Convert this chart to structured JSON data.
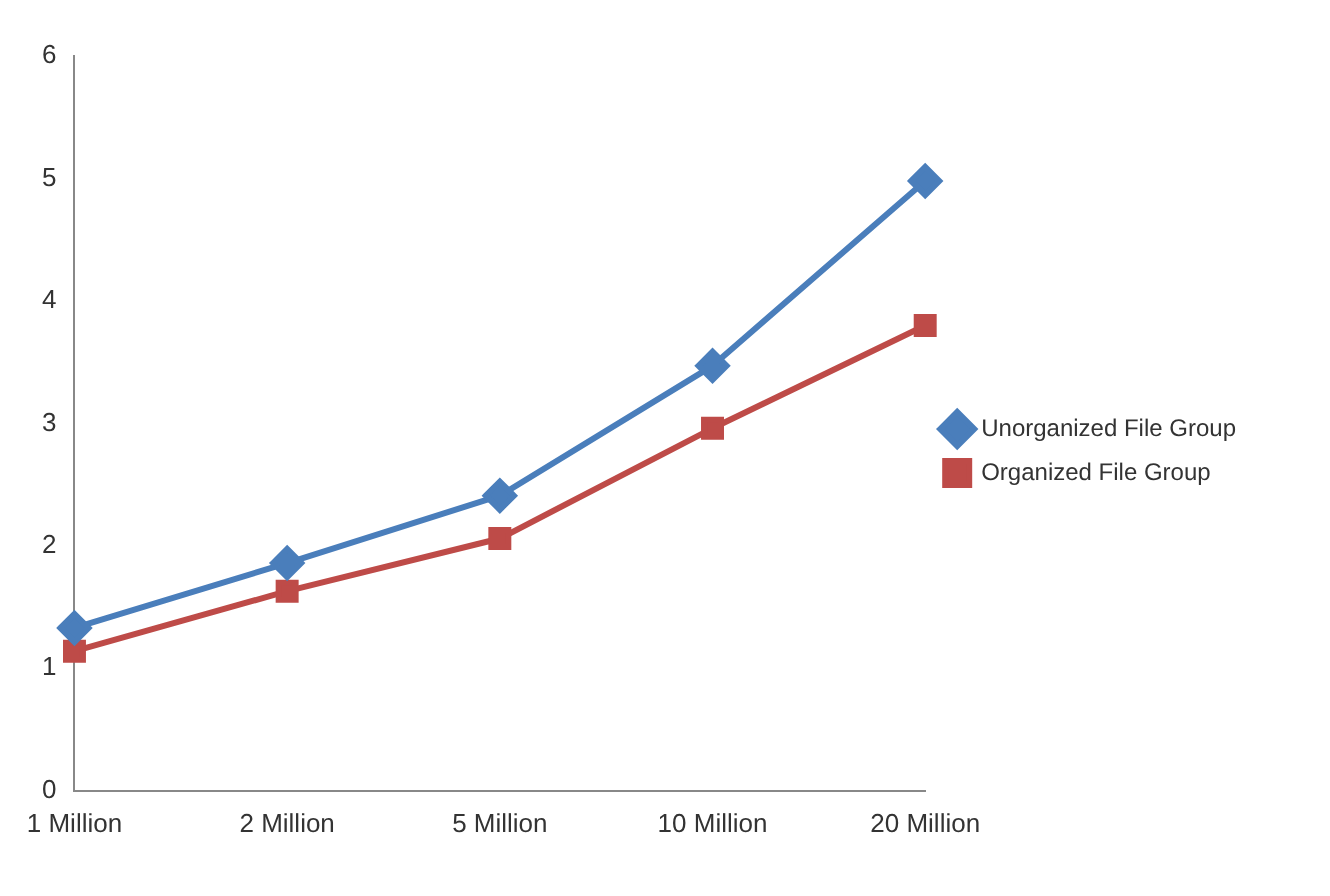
{
  "chart_data": {
    "type": "line",
    "categories": [
      "1 Million",
      "2 Million",
      "5 Million",
      "10 Million",
      "20 Million"
    ],
    "series": [
      {
        "name": "Unorganized File Group",
        "color": "#4a7ebb",
        "values": [
          1.33,
          1.86,
          2.41,
          3.47,
          4.98
        ],
        "marker": "diamond"
      },
      {
        "name": "Organized File Group",
        "color": "#be4b48",
        "values": [
          1.14,
          1.63,
          2.06,
          2.96,
          3.8
        ],
        "marker": "square"
      }
    ],
    "ylim": [
      0,
      6
    ],
    "yticks": [
      0,
      1,
      2,
      3,
      4,
      5,
      6
    ],
    "grid": false,
    "legend": "right"
  }
}
